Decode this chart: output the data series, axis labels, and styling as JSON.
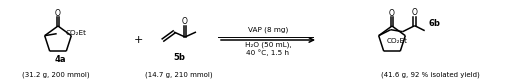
{
  "background_color": "#ffffff",
  "compound_4a_label": "4a",
  "compound_5b_label": "5b",
  "compound_6b_label": "6b",
  "reagent_line1": "VAP (8 mg)",
  "reagent_line2": "H₂O (50 mL),",
  "reagent_line3": "40 °C, 1.5 h",
  "plus_sign": "+",
  "caption_4a": "(31.2 g, 200 mmol)",
  "caption_5b": "(14.7 g, 210 mmol)",
  "caption_6b": "(41.6 g, 92 % isolated yield)",
  "co2et": "CO₂Et",
  "oxygen": "O",
  "fig_width": 5.22,
  "fig_height": 0.81,
  "dpi": 100
}
